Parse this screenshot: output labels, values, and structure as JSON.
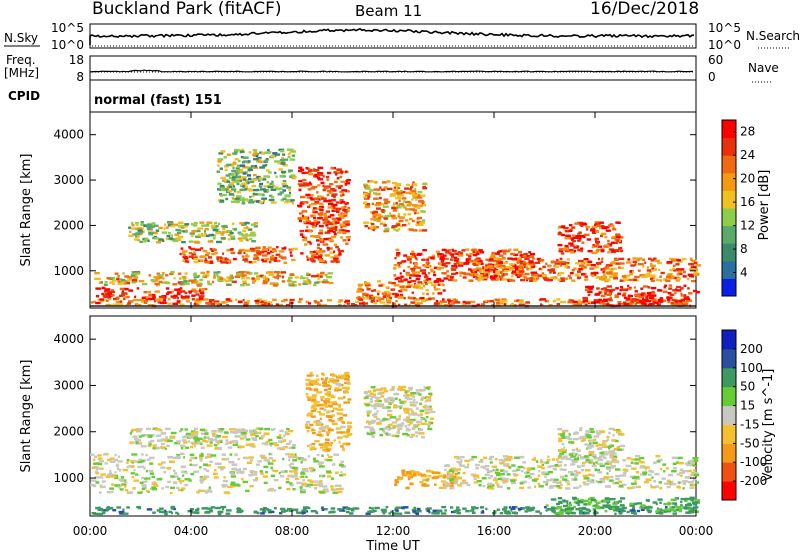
{
  "header": {
    "title": "Buckland Park (fitACF)",
    "beam": "Beam 11",
    "date": "16/Dec/2018"
  },
  "panels": {
    "nsky": {
      "left_label": "N.Sky",
      "right_label": "N.Search",
      "ytick_top": "10^5",
      "ytick_bottom": "10^0",
      "right_ytick_top": "10^5",
      "right_ytick_bottom": "10^0"
    },
    "freq": {
      "left_label_1": "Freq.",
      "left_label_2": "[MHz]",
      "right_label": "Nave",
      "ytick_top": "18",
      "ytick_bottom": "8",
      "right_ytick_top": "60",
      "right_ytick_bottom": "0"
    },
    "cpid": {
      "label": "CPID",
      "text": "normal (fast) 151"
    }
  },
  "x_axis": {
    "label": "Time UT",
    "ticks": [
      "00:00",
      "04:00",
      "08:00",
      "12:00",
      "16:00",
      "20:00",
      "00:00"
    ]
  },
  "chart_data": [
    {
      "type": "heatmap",
      "name": "power",
      "ylabel": "Slant Range [km]",
      "xlim": [
        0,
        24
      ],
      "ylim": [
        180,
        4500
      ],
      "yticks": [
        1000,
        2000,
        3000,
        4000
      ],
      "colorbar": {
        "label": "Power [dB]",
        "ticks": [
          4,
          8,
          12,
          16,
          20,
          24,
          28
        ],
        "range": [
          0,
          30
        ],
        "colors": [
          "#0a1fe6",
          "#2a6fa0",
          "#3d8a6a",
          "#5aa86a",
          "#8ccd4a",
          "#f0c020",
          "#f39a10",
          "#ef6a10",
          "#e8300a",
          "#ff0000"
        ]
      },
      "bands": [
        {
          "t0": 0.0,
          "t1": 24.0,
          "r0": 250,
          "r1": 400,
          "value": 22
        },
        {
          "t0": 0.0,
          "t1": 9.5,
          "r0": 700,
          "r1": 1000,
          "value": 18
        },
        {
          "t0": 0.2,
          "t1": 4.5,
          "r0": 400,
          "r1": 650,
          "value": 26
        },
        {
          "t0": 3.5,
          "t1": 10.0,
          "r0": 1200,
          "r1": 1550,
          "value": 24
        },
        {
          "t0": 1.5,
          "t1": 6.5,
          "r0": 1650,
          "r1": 2100,
          "value": 14
        },
        {
          "t0": 8.2,
          "t1": 10.2,
          "r0": 1600,
          "r1": 3300,
          "value": 25
        },
        {
          "t0": 10.8,
          "t1": 13.2,
          "r0": 1900,
          "r1": 3000,
          "value": 20
        },
        {
          "t0": 10.5,
          "t1": 14.0,
          "r0": 400,
          "r1": 800,
          "value": 22
        },
        {
          "t0": 12.0,
          "t1": 17.5,
          "r0": 800,
          "r1": 1500,
          "value": 25
        },
        {
          "t0": 15.0,
          "t1": 24.0,
          "r0": 800,
          "r1": 1300,
          "value": 22
        },
        {
          "t0": 18.5,
          "t1": 21.0,
          "r0": 1400,
          "r1": 2100,
          "value": 26
        },
        {
          "t0": 19.5,
          "t1": 24.0,
          "r0": 250,
          "r1": 700,
          "value": 28
        },
        {
          "t0": 5.0,
          "t1": 8.0,
          "r0": 2500,
          "r1": 3700,
          "value": 12
        }
      ]
    },
    {
      "type": "heatmap",
      "name": "velocity",
      "ylabel": "Slant Range [km]",
      "xlim": [
        0,
        24
      ],
      "ylim": [
        180,
        4500
      ],
      "yticks": [
        1000,
        2000,
        3000,
        4000
      ],
      "colorbar": {
        "label": "Velocity [m s^-1]",
        "ticks": [
          -200,
          -100,
          -50,
          -15,
          15,
          50,
          100,
          200
        ],
        "colors": [
          "#ff0000",
          "#f05010",
          "#f59a18",
          "#f2c030",
          "#c8c8c0",
          "#66cc33",
          "#3c9a60",
          "#2a4fa0",
          "#1020c0"
        ]
      },
      "bands": [
        {
          "t0": 0.0,
          "t1": 24.0,
          "r0": 250,
          "r1": 400,
          "value": 80
        },
        {
          "t0": 0.0,
          "t1": 10.0,
          "r0": 700,
          "r1": 1550,
          "value": 0
        },
        {
          "t0": 1.5,
          "t1": 8.0,
          "r0": 1650,
          "r1": 2100,
          "value": 0
        },
        {
          "t0": 8.5,
          "t1": 10.2,
          "r0": 1600,
          "r1": 3300,
          "value": -40
        },
        {
          "t0": 10.8,
          "t1": 13.5,
          "r0": 1900,
          "r1": 3000,
          "value": 0
        },
        {
          "t0": 12.0,
          "t1": 14.5,
          "r0": 800,
          "r1": 1200,
          "value": -60
        },
        {
          "t0": 14.0,
          "t1": 24.0,
          "r0": 800,
          "r1": 1500,
          "value": 0
        },
        {
          "t0": 18.5,
          "t1": 21.0,
          "r0": 1400,
          "r1": 2100,
          "value": 0
        },
        {
          "t0": 18.0,
          "t1": 24.0,
          "r0": 250,
          "r1": 600,
          "value": 60
        }
      ]
    }
  ]
}
